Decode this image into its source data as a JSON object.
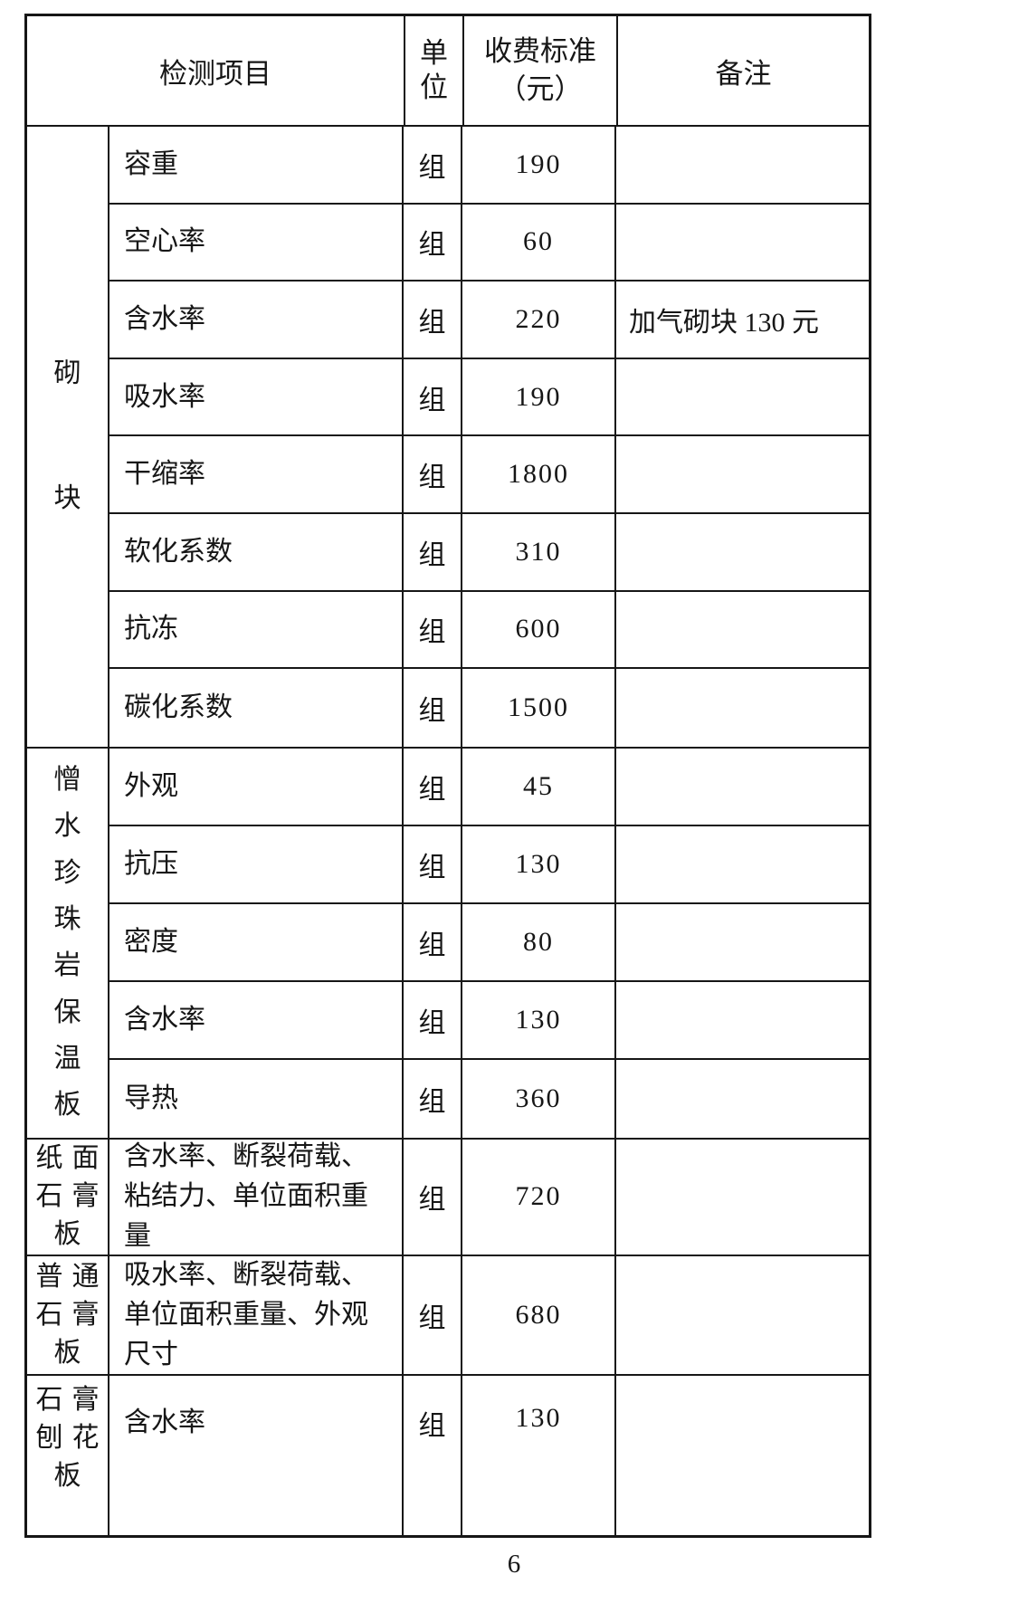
{
  "page_number": "6",
  "table": {
    "header": {
      "item": "检测项目",
      "unit_lines": [
        "单",
        "位"
      ],
      "fee_lines": [
        "收费标准",
        "（元）"
      ],
      "remark": "备注"
    },
    "sections": [
      {
        "category": "砌块",
        "category_lines": [
          "砌",
          "块"
        ],
        "rows": [
          {
            "item": "容重",
            "unit": "组",
            "fee": "190",
            "remark": ""
          },
          {
            "item": "空心率",
            "unit": "组",
            "fee": "60",
            "remark": ""
          },
          {
            "item": "含水率",
            "unit": "组",
            "fee": "220",
            "remark": "加气砌块 130 元"
          },
          {
            "item": "吸水率",
            "unit": "组",
            "fee": "190",
            "remark": ""
          },
          {
            "item": "干缩率",
            "unit": "组",
            "fee": "1800",
            "remark": ""
          },
          {
            "item": "软化系数",
            "unit": "组",
            "fee": "310",
            "remark": ""
          },
          {
            "item": "抗冻",
            "unit": "组",
            "fee": "600",
            "remark": ""
          },
          {
            "item": "碳化系数",
            "unit": "组",
            "fee": "1500",
            "remark": ""
          }
        ]
      },
      {
        "category": "憎水珍珠岩保温板",
        "category_lines": [
          "憎",
          "水",
          "珍",
          "珠",
          "岩",
          "保",
          "温",
          "板"
        ],
        "rows": [
          {
            "item": "外观",
            "unit": "组",
            "fee": "45",
            "remark": ""
          },
          {
            "item": "抗压",
            "unit": "组",
            "fee": "130",
            "remark": ""
          },
          {
            "item": "密度",
            "unit": "组",
            "fee": "80",
            "remark": ""
          },
          {
            "item": "含水率",
            "unit": "组",
            "fee": "130",
            "remark": ""
          },
          {
            "item": "导热",
            "unit": "组",
            "fee": "360",
            "remark": ""
          }
        ]
      },
      {
        "category": "纸面石膏板",
        "category_lines": [
          "纸面",
          "石膏",
          "板"
        ],
        "rows": [
          {
            "item": "含水率、断裂荷载、粘结力、单位面积重量",
            "unit": "组",
            "fee": "720",
            "remark": ""
          }
        ]
      },
      {
        "category": "普通石膏板",
        "category_lines": [
          "普通",
          "石膏",
          "板"
        ],
        "rows": [
          {
            "item": "吸水率、断裂荷载、单位面积重量、外观尺寸",
            "unit": "组",
            "fee": "680",
            "remark": ""
          }
        ]
      },
      {
        "category": "石膏刨花板",
        "category_lines": [
          "石膏",
          "刨花",
          "板"
        ],
        "rows": [
          {
            "item": "含水率",
            "unit": "组",
            "fee": "130",
            "remark": ""
          }
        ]
      }
    ]
  }
}
